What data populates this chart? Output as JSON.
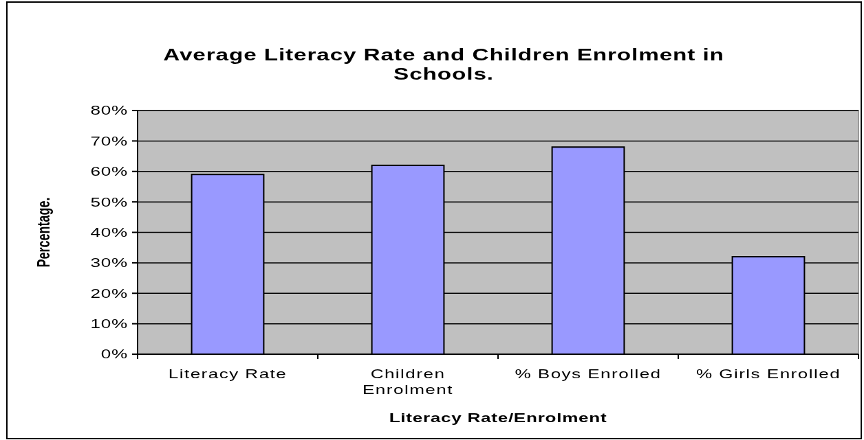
{
  "chart_data": {
    "type": "bar",
    "title": "Average Literacy Rate and Children Enrolment in Schools.",
    "xlabel": "Literacy Rate/Enrolment",
    "ylabel": "Percentage.",
    "categories": [
      "Literacy Rate",
      "Children Enrolment",
      "% Boys Enrolled",
      "% Girls Enrolled"
    ],
    "values": [
      59,
      62,
      68,
      32
    ],
    "color": "#9999ff",
    "ylim": [
      0,
      80
    ],
    "yticks": [
      {
        "value": 0,
        "label": "0%"
      },
      {
        "value": 10,
        "label": "10%"
      },
      {
        "value": 20,
        "label": "20%"
      },
      {
        "value": 30,
        "label": "30%"
      },
      {
        "value": 40,
        "label": "40%"
      },
      {
        "value": 50,
        "label": "50%"
      },
      {
        "value": 60,
        "label": "60%"
      },
      {
        "value": 70,
        "label": "70%"
      },
      {
        "value": 80,
        "label": "80%"
      }
    ],
    "grid": "y"
  }
}
